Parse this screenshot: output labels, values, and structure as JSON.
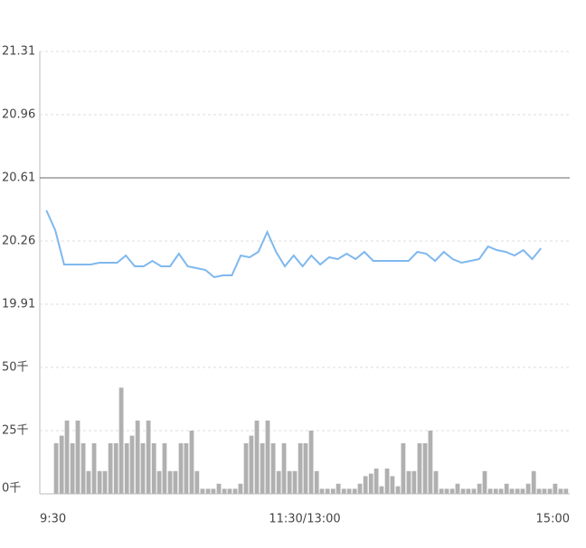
{
  "chart_data": [
    {
      "type": "line",
      "color": "#7fb8ee",
      "ref_line": 20.61,
      "grid": true,
      "xlim": [
        0,
        240
      ],
      "ylim": [
        19.91,
        21.31
      ],
      "yticks": [
        21.31,
        20.96,
        20.61,
        20.26,
        19.91
      ],
      "x": [
        3,
        7,
        11,
        15,
        19,
        23,
        27,
        31,
        35,
        39,
        43,
        47,
        51,
        55,
        59,
        63,
        67,
        71,
        75,
        79,
        83,
        87,
        91,
        95,
        99,
        103,
        107,
        111,
        115,
        119,
        123,
        127,
        131,
        135,
        139,
        143,
        147,
        151,
        155,
        159,
        163,
        167,
        171,
        175,
        179,
        183,
        187,
        191,
        195,
        199,
        203,
        207,
        211,
        215,
        219,
        223,
        227
      ],
      "values": [
        20.43,
        20.32,
        20.13,
        20.13,
        20.13,
        20.13,
        20.14,
        20.14,
        20.14,
        20.18,
        20.12,
        20.12,
        20.15,
        20.12,
        20.12,
        20.19,
        20.12,
        20.11,
        20.1,
        20.06,
        20.07,
        20.07,
        20.18,
        20.17,
        20.2,
        20.31,
        20.2,
        20.12,
        20.18,
        20.12,
        20.18,
        20.13,
        20.17,
        20.16,
        20.19,
        20.16,
        20.2,
        20.15,
        20.15,
        20.15,
        20.15,
        20.15,
        20.2,
        20.19,
        20.15,
        20.2,
        20.16,
        20.14,
        20.15,
        20.16,
        20.23,
        20.21,
        20.2,
        20.18,
        20.21,
        20.16,
        20.22
      ]
    },
    {
      "type": "bar",
      "color": "#b0b0b0",
      "grid": true,
      "xlim": [
        0,
        240
      ],
      "ylim": [
        0,
        50
      ],
      "yticks": [
        {
          "value": 50,
          "label": "50千"
        },
        {
          "value": 25,
          "label": "25千"
        },
        {
          "value": 0,
          "label": "0千"
        }
      ],
      "xticks": [
        {
          "value": 0,
          "label": "9:30"
        },
        {
          "value": 120,
          "label": "11:30/13:00"
        },
        {
          "value": 240,
          "label": "15:00"
        }
      ],
      "x": [
        7.4,
        9.9,
        12.3,
        14.8,
        17.2,
        19.7,
        22.1,
        24.6,
        27.1,
        29.5,
        32.0,
        34.5,
        36.9,
        39.4,
        41.8,
        44.3,
        46.7,
        49.2,
        51.7,
        54.1,
        56.5,
        59.0,
        61.4,
        63.9,
        66.3,
        68.8,
        71.2,
        73.7,
        76.2,
        78.6,
        81.1,
        83.6,
        86.0,
        88.5,
        90.9,
        93.4,
        95.8,
        98.3,
        100.8,
        103.2,
        105.7,
        108.2,
        110.6,
        113.1,
        115.5,
        118.0,
        120.4,
        122.9,
        125.4,
        127.8,
        130.3,
        132.8,
        135.2,
        137.7,
        140.1,
        142.6,
        145.0,
        147.5,
        150.0,
        152.4,
        154.8,
        157.3,
        159.7,
        162.2,
        164.6,
        167.1,
        169.5,
        172.0,
        174.5,
        176.9,
        179.4,
        181.9,
        184.3,
        186.8,
        189.2,
        191.7,
        194.1,
        196.6,
        199.1,
        201.5,
        204.0,
        206.5,
        208.9,
        211.4,
        213.8,
        216.3,
        218.7,
        221.2,
        223.7,
        226.1,
        228.5,
        231.0,
        233.4,
        235.9,
        238.3
      ],
      "values": [
        20,
        23,
        29,
        20,
        29,
        20,
        9,
        20,
        9,
        9,
        20,
        20,
        42,
        20,
        23,
        29,
        20,
        29,
        20,
        9,
        20,
        9,
        9,
        20,
        20,
        25,
        9,
        2,
        2,
        2,
        4,
        2,
        2,
        2,
        4,
        20,
        23,
        29,
        20,
        29,
        20,
        9,
        20,
        9,
        9,
        20,
        20,
        25,
        9,
        2,
        2,
        2,
        4,
        2,
        2,
        2,
        4,
        7,
        8,
        10,
        3,
        10,
        7,
        3,
        20,
        9,
        9,
        20,
        20,
        25,
        9,
        2,
        2,
        2,
        4,
        2,
        2,
        2,
        4,
        9,
        2,
        2,
        2,
        4,
        2,
        2,
        2,
        4,
        9,
        2,
        2,
        2,
        4,
        2,
        2
      ]
    }
  ]
}
